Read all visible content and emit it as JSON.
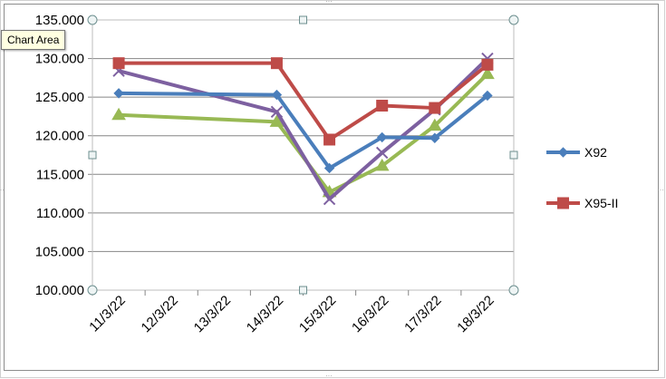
{
  "tooltip": {
    "label": "Chart Area"
  },
  "chart_data": {
    "type": "line",
    "title": "",
    "xlabel": "",
    "ylabel": "",
    "categories": [
      "11/3/22",
      "12/3/22",
      "13/3/22",
      "14/3/22",
      "15/3/22",
      "16/3/22",
      "17/3/22",
      "18/3/22"
    ],
    "y_tick_labels": [
      "100.000",
      "105.000",
      "110.000",
      "115.000",
      "120.000",
      "125.000",
      "130.000",
      "135.000"
    ],
    "ylim": [
      100000,
      135000
    ],
    "grid": true,
    "legend_position": "right",
    "series": [
      {
        "name": "X92",
        "color": "#4a7ebb",
        "marker": "diamond",
        "x": [
          "11/3/22",
          "14/3/22",
          "15/3/22",
          "16/3/22",
          "17/3/22",
          "18/3/22"
        ],
        "values": [
          125500,
          125300,
          115800,
          119800,
          119700,
          125200
        ]
      },
      {
        "name": "X95-II",
        "color": "#be4b48",
        "marker": "square",
        "x": [
          "11/3/22",
          "14/3/22",
          "15/3/22",
          "16/3/22",
          "17/3/22",
          "18/3/22"
        ],
        "values": [
          129400,
          129400,
          119500,
          123900,
          123600,
          129200
        ]
      },
      {
        "color": "#98b954",
        "marker": "triangle",
        "x": [
          "11/3/22",
          "14/3/22",
          "15/3/22",
          "16/3/22",
          "17/3/22",
          "18/3/22"
        ],
        "values": [
          122700,
          121800,
          112700,
          116100,
          121300,
          128000
        ]
      },
      {
        "color": "#7d60a0",
        "marker": "x",
        "x": [
          "11/3/22",
          "14/3/22",
          "15/3/22",
          "16/3/22",
          "17/3/22",
          "18/3/22"
        ],
        "values": [
          128400,
          123100,
          111800,
          117800,
          123400,
          130000
        ]
      }
    ]
  }
}
